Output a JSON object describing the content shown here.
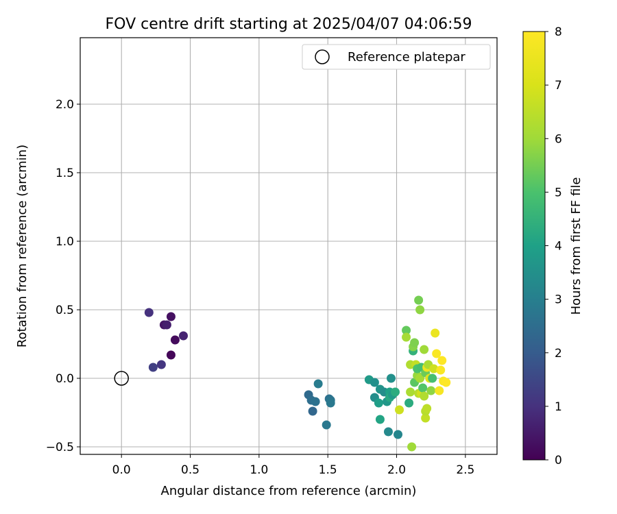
{
  "chart_data": {
    "type": "scatter",
    "title": "FOV centre drift starting at 2025/04/07 04:06:59",
    "xlabel": "Angular distance from reference (arcmin)",
    "ylabel": "Rotation from reference (arcmin)",
    "xlim": [
      -0.3,
      2.73
    ],
    "ylim": [
      -0.555,
      2.485
    ],
    "xticks": [
      0.0,
      0.5,
      1.0,
      1.5,
      2.0,
      2.5
    ],
    "xtick_labels": [
      "0.0",
      "0.5",
      "1.0",
      "1.5",
      "2.0",
      "2.5"
    ],
    "yticks": [
      -0.5,
      0.0,
      0.5,
      1.0,
      1.5,
      2.0
    ],
    "ytick_labels": [
      "−0.5",
      "0.0",
      "0.5",
      "1.0",
      "1.5",
      "2.0"
    ],
    "grid": true,
    "legend": {
      "location": "upper right",
      "entries": [
        "Reference platepar"
      ]
    },
    "reference_point": {
      "x": 0.0,
      "y": 0.0,
      "label": "Reference platepar"
    },
    "colorbar": {
      "label": "Hours from first FF file",
      "range": [
        0,
        8
      ],
      "ticks": [
        0,
        1,
        2,
        3,
        4,
        5,
        6,
        7,
        8
      ],
      "tick_labels": [
        "0",
        "1",
        "2",
        "3",
        "4",
        "5",
        "6",
        "7",
        "8"
      ],
      "colormap": "viridis"
    },
    "points": [
      {
        "x": 0.2,
        "y": 0.48,
        "h": 1.0
      },
      {
        "x": 0.23,
        "y": 0.08,
        "h": 1.3
      },
      {
        "x": 0.29,
        "y": 0.1,
        "h": 1.1
      },
      {
        "x": 0.31,
        "y": 0.39,
        "h": 0.4
      },
      {
        "x": 0.33,
        "y": 0.39,
        "h": 0.6
      },
      {
        "x": 0.36,
        "y": 0.45,
        "h": 0.3
      },
      {
        "x": 0.36,
        "y": 0.17,
        "h": 0.1
      },
      {
        "x": 0.39,
        "y": 0.28,
        "h": 0.2
      },
      {
        "x": 0.45,
        "y": 0.31,
        "h": 0.7
      },
      {
        "x": 1.36,
        "y": -0.12,
        "h": 2.4
      },
      {
        "x": 1.38,
        "y": -0.16,
        "h": 2.5
      },
      {
        "x": 1.39,
        "y": -0.24,
        "h": 2.3
      },
      {
        "x": 1.41,
        "y": -0.17,
        "h": 2.6
      },
      {
        "x": 1.43,
        "y": -0.04,
        "h": 2.9
      },
      {
        "x": 1.49,
        "y": -0.34,
        "h": 2.8
      },
      {
        "x": 1.51,
        "y": -0.15,
        "h": 2.6
      },
      {
        "x": 1.52,
        "y": -0.16,
        "h": 2.7
      },
      {
        "x": 1.52,
        "y": -0.18,
        "h": 2.8
      },
      {
        "x": 1.8,
        "y": -0.01,
        "h": 3.8
      },
      {
        "x": 1.84,
        "y": -0.03,
        "h": 3.5
      },
      {
        "x": 1.84,
        "y": -0.14,
        "h": 3.4
      },
      {
        "x": 1.87,
        "y": -0.18,
        "h": 3.9
      },
      {
        "x": 1.88,
        "y": -0.3,
        "h": 4.1
      },
      {
        "x": 1.88,
        "y": -0.08,
        "h": 3.6
      },
      {
        "x": 1.91,
        "y": -0.1,
        "h": 3.4
      },
      {
        "x": 1.93,
        "y": -0.17,
        "h": 3.7
      },
      {
        "x": 1.94,
        "y": -0.39,
        "h": 3.3
      },
      {
        "x": 1.95,
        "y": -0.1,
        "h": 4.0
      },
      {
        "x": 1.95,
        "y": -0.14,
        "h": 4.2
      },
      {
        "x": 1.96,
        "y": 0.0,
        "h": 3.5
      },
      {
        "x": 1.97,
        "y": -0.12,
        "h": 3.8
      },
      {
        "x": 1.99,
        "y": -0.1,
        "h": 4.3
      },
      {
        "x": 2.01,
        "y": -0.41,
        "h": 3.2
      },
      {
        "x": 2.02,
        "y": -0.23,
        "h": 6.8
      },
      {
        "x": 2.07,
        "y": 0.35,
        "h": 5.3
      },
      {
        "x": 2.07,
        "y": 0.3,
        "h": 6.1
      },
      {
        "x": 2.09,
        "y": -0.18,
        "h": 4.3
      },
      {
        "x": 2.1,
        "y": -0.1,
        "h": 6.2
      },
      {
        "x": 2.1,
        "y": 0.1,
        "h": 6.3
      },
      {
        "x": 2.11,
        "y": -0.5,
        "h": 6.0
      },
      {
        "x": 2.12,
        "y": 0.2,
        "h": 4.5
      },
      {
        "x": 2.12,
        "y": 0.23,
        "h": 5.7
      },
      {
        "x": 2.13,
        "y": 0.26,
        "h": 5.6
      },
      {
        "x": 2.13,
        "y": -0.03,
        "h": 5.2
      },
      {
        "x": 2.14,
        "y": 0.1,
        "h": 6.6
      },
      {
        "x": 2.15,
        "y": 0.02,
        "h": 5.9
      },
      {
        "x": 2.15,
        "y": 0.07,
        "h": 5.0
      },
      {
        "x": 2.16,
        "y": 0.57,
        "h": 5.5
      },
      {
        "x": 2.16,
        "y": -0.11,
        "h": 6.4
      },
      {
        "x": 2.17,
        "y": 0.5,
        "h": 5.8
      },
      {
        "x": 2.17,
        "y": 0.0,
        "h": 6.1
      },
      {
        "x": 2.18,
        "y": -0.11,
        "h": 6.9
      },
      {
        "x": 2.18,
        "y": 0.08,
        "h": 4.9
      },
      {
        "x": 2.19,
        "y": -0.07,
        "h": 5.1
      },
      {
        "x": 2.2,
        "y": -0.13,
        "h": 6.3
      },
      {
        "x": 2.2,
        "y": 0.21,
        "h": 6.0
      },
      {
        "x": 2.21,
        "y": -0.29,
        "h": 6.6
      },
      {
        "x": 2.21,
        "y": -0.24,
        "h": 6.4
      },
      {
        "x": 2.21,
        "y": 0.04,
        "h": 5.4
      },
      {
        "x": 2.22,
        "y": -0.22,
        "h": 6.5
      },
      {
        "x": 2.22,
        "y": 0.08,
        "h": 7.6
      },
      {
        "x": 2.23,
        "y": 0.1,
        "h": 6.2
      },
      {
        "x": 2.24,
        "y": 0.0,
        "h": 7.2
      },
      {
        "x": 2.25,
        "y": -0.09,
        "h": 5.8
      },
      {
        "x": 2.26,
        "y": 0.0,
        "h": 4.9
      },
      {
        "x": 2.27,
        "y": 0.07,
        "h": 6.8
      },
      {
        "x": 2.28,
        "y": 0.33,
        "h": 7.5
      },
      {
        "x": 2.29,
        "y": 0.18,
        "h": 7.9
      },
      {
        "x": 2.31,
        "y": -0.09,
        "h": 7.8
      },
      {
        "x": 2.32,
        "y": 0.06,
        "h": 7.9
      },
      {
        "x": 2.33,
        "y": 0.13,
        "h": 8.0
      },
      {
        "x": 2.34,
        "y": -0.02,
        "h": 7.9
      },
      {
        "x": 2.36,
        "y": -0.03,
        "h": 8.0
      }
    ]
  }
}
